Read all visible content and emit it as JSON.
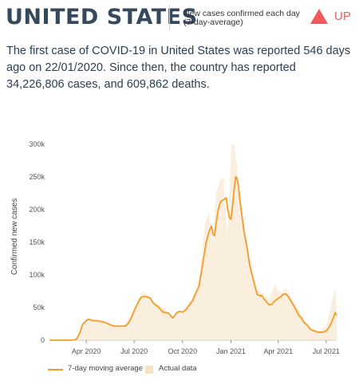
{
  "header": {
    "country": "UNITED STATES",
    "metric_line1": "New cases confirmed each day",
    "metric_line2": "(7-day-average)",
    "trend_label": "UP",
    "trend_icon": "triangle-up-icon",
    "trend_color": "#f05a5a"
  },
  "summary": "The first case of COVID-19 in United States was reported 546 days ago on 22/01/2020. Since then, the country has reported 34,226,806 cases, and 609,862 deaths.",
  "colors": {
    "line": "#f39c2a",
    "actual_fill": "#f6e1c4",
    "country_text": "#34495e"
  },
  "chart_data": {
    "type": "line",
    "title": "",
    "xlabel": "",
    "ylabel": "Confirmed new cases",
    "y_ticks": [
      {
        "value": 0,
        "label": "0"
      },
      {
        "value": 50000,
        "label": "50k"
      },
      {
        "value": 100000,
        "label": "100k"
      },
      {
        "value": 150000,
        "label": "150k"
      },
      {
        "value": 200000,
        "label": "200k"
      },
      {
        "value": 250000,
        "label": "250k"
      },
      {
        "value": 300000,
        "label": "300k"
      }
    ],
    "x_ticks": [
      {
        "date": "2020-04-01",
        "label": "Apr 2020"
      },
      {
        "date": "2020-07-01",
        "label": "Jul 2020"
      },
      {
        "date": "2020-10-01",
        "label": "Oct 2020"
      },
      {
        "date": "2021-01-01",
        "label": "Jan 2021"
      },
      {
        "date": "2021-04-01",
        "label": "Apr 2021"
      },
      {
        "date": "2021-07-01",
        "label": "Jul 2021"
      }
    ],
    "xlim": [
      "2020-01-22",
      "2021-07-21"
    ],
    "ylim": [
      0,
      300000
    ],
    "grid": false,
    "legend_position": "bottom",
    "series": [
      {
        "name": "7-day moving average",
        "kind": "line",
        "points": [
          [
            "2020-01-22",
            0
          ],
          [
            "2020-03-01",
            0
          ],
          [
            "2020-03-10",
            500
          ],
          [
            "2020-03-15",
            3000
          ],
          [
            "2020-03-20",
            12000
          ],
          [
            "2020-03-25",
            24000
          ],
          [
            "2020-04-01",
            30000
          ],
          [
            "2020-04-05",
            32000
          ],
          [
            "2020-04-10",
            31000
          ],
          [
            "2020-04-15",
            29500
          ],
          [
            "2020-04-20",
            30000
          ],
          [
            "2020-04-25",
            29000
          ],
          [
            "2020-05-01",
            28500
          ],
          [
            "2020-05-10",
            26000
          ],
          [
            "2020-05-15",
            24000
          ],
          [
            "2020-05-20",
            22500
          ],
          [
            "2020-05-25",
            21500
          ],
          [
            "2020-06-01",
            21500
          ],
          [
            "2020-06-10",
            21500
          ],
          [
            "2020-06-15",
            22000
          ],
          [
            "2020-06-20",
            26000
          ],
          [
            "2020-06-25",
            33000
          ],
          [
            "2020-07-01",
            45000
          ],
          [
            "2020-07-05",
            52000
          ],
          [
            "2020-07-10",
            60000
          ],
          [
            "2020-07-15",
            66000
          ],
          [
            "2020-07-20",
            67000
          ],
          [
            "2020-07-25",
            66500
          ],
          [
            "2020-08-01",
            64000
          ],
          [
            "2020-08-05",
            58000
          ],
          [
            "2020-08-10",
            54000
          ],
          [
            "2020-08-15",
            52000
          ],
          [
            "2020-08-20",
            47000
          ],
          [
            "2020-08-25",
            43000
          ],
          [
            "2020-09-01",
            42000
          ],
          [
            "2020-09-05",
            41000
          ],
          [
            "2020-09-10",
            36000
          ],
          [
            "2020-09-13",
            34000
          ],
          [
            "2020-09-16",
            38000
          ],
          [
            "2020-09-20",
            42000
          ],
          [
            "2020-09-25",
            44000
          ],
          [
            "2020-10-01",
            43000
          ],
          [
            "2020-10-05",
            45000
          ],
          [
            "2020-10-10",
            49000
          ],
          [
            "2020-10-15",
            55000
          ],
          [
            "2020-10-20",
            60000
          ],
          [
            "2020-10-25",
            70000
          ],
          [
            "2020-11-01",
            82000
          ],
          [
            "2020-11-05",
            100000
          ],
          [
            "2020-11-10",
            125000
          ],
          [
            "2020-11-15",
            150000
          ],
          [
            "2020-11-20",
            165000
          ],
          [
            "2020-11-25",
            175000
          ],
          [
            "2020-11-28",
            162000
          ],
          [
            "2020-12-01",
            160000
          ],
          [
            "2020-12-04",
            180000
          ],
          [
            "2020-12-08",
            200000
          ],
          [
            "2020-12-12",
            212000
          ],
          [
            "2020-12-16",
            214000
          ],
          [
            "2020-12-20",
            216000
          ],
          [
            "2020-12-23",
            218000
          ],
          [
            "2020-12-26",
            200000
          ],
          [
            "2020-12-29",
            188000
          ],
          [
            "2021-01-01",
            185000
          ],
          [
            "2021-01-04",
            205000
          ],
          [
            "2021-01-07",
            230000
          ],
          [
            "2021-01-10",
            250000
          ],
          [
            "2021-01-12",
            249000
          ],
          [
            "2021-01-15",
            238000
          ],
          [
            "2021-01-18",
            215000
          ],
          [
            "2021-01-22",
            190000
          ],
          [
            "2021-01-26",
            165000
          ],
          [
            "2021-02-01",
            140000
          ],
          [
            "2021-02-05",
            118000
          ],
          [
            "2021-02-10",
            100000
          ],
          [
            "2021-02-15",
            85000
          ],
          [
            "2021-02-20",
            70000
          ],
          [
            "2021-02-25",
            68000
          ],
          [
            "2021-03-01",
            68000
          ],
          [
            "2021-03-05",
            63000
          ],
          [
            "2021-03-10",
            58000
          ],
          [
            "2021-03-15",
            54000
          ],
          [
            "2021-03-20",
            55000
          ],
          [
            "2021-03-25",
            60000
          ],
          [
            "2021-04-01",
            64000
          ],
          [
            "2021-04-05",
            66000
          ],
          [
            "2021-04-10",
            70000
          ],
          [
            "2021-04-15",
            71000
          ],
          [
            "2021-04-20",
            67000
          ],
          [
            "2021-04-25",
            60000
          ],
          [
            "2021-05-01",
            52000
          ],
          [
            "2021-05-05",
            46000
          ],
          [
            "2021-05-10",
            38000
          ],
          [
            "2021-05-15",
            34000
          ],
          [
            "2021-05-20",
            27000
          ],
          [
            "2021-05-25",
            24000
          ],
          [
            "2021-06-01",
            17000
          ],
          [
            "2021-06-05",
            15000
          ],
          [
            "2021-06-10",
            14000
          ],
          [
            "2021-06-15",
            12500
          ],
          [
            "2021-06-20",
            12000
          ],
          [
            "2021-06-25",
            12500
          ],
          [
            "2021-07-01",
            14000
          ],
          [
            "2021-07-05",
            18000
          ],
          [
            "2021-07-10",
            25000
          ],
          [
            "2021-07-15",
            35000
          ],
          [
            "2021-07-18",
            42000
          ],
          [
            "2021-07-21",
            38000
          ]
        ]
      },
      {
        "name": "Actual data",
        "kind": "area",
        "points": [
          [
            "2020-01-22",
            0
          ],
          [
            "2020-03-01",
            0
          ],
          [
            "2020-03-15",
            4000
          ],
          [
            "2020-03-25",
            26000
          ],
          [
            "2020-04-04",
            35000
          ],
          [
            "2020-04-15",
            31000
          ],
          [
            "2020-05-01",
            30000
          ],
          [
            "2020-05-20",
            24000
          ],
          [
            "2020-06-10",
            23000
          ],
          [
            "2020-06-25",
            38000
          ],
          [
            "2020-07-10",
            65000
          ],
          [
            "2020-07-17",
            75000
          ],
          [
            "2020-07-25",
            70000
          ],
          [
            "2020-08-10",
            58000
          ],
          [
            "2020-09-01",
            45000
          ],
          [
            "2020-09-13",
            36000
          ],
          [
            "2020-10-01",
            46000
          ],
          [
            "2020-10-20",
            65000
          ],
          [
            "2020-11-01",
            90000
          ],
          [
            "2020-11-13",
            180000
          ],
          [
            "2020-11-20",
            195000
          ],
          [
            "2020-11-27",
            150000
          ],
          [
            "2020-12-04",
            225000
          ],
          [
            "2020-12-11",
            245000
          ],
          [
            "2020-12-18",
            250000
          ],
          [
            "2020-12-25",
            160000
          ],
          [
            "2021-01-02",
            300000
          ],
          [
            "2021-01-08",
            298000
          ],
          [
            "2021-01-15",
            245000
          ],
          [
            "2021-01-22",
            200000
          ],
          [
            "2021-02-01",
            150000
          ],
          [
            "2021-02-10",
            110000
          ],
          [
            "2021-02-20",
            78000
          ],
          [
            "2021-03-05",
            70000
          ],
          [
            "2021-03-15",
            62000
          ],
          [
            "2021-03-25",
            85000
          ],
          [
            "2021-04-05",
            72000
          ],
          [
            "2021-04-15",
            80000
          ],
          [
            "2021-05-01",
            58000
          ],
          [
            "2021-05-15",
            40000
          ],
          [
            "2021-06-01",
            18000
          ],
          [
            "2021-06-15",
            14000
          ],
          [
            "2021-07-01",
            20000
          ],
          [
            "2021-07-12",
            60000
          ],
          [
            "2021-07-19",
            80000
          ],
          [
            "2021-07-21",
            42000
          ]
        ]
      }
    ]
  },
  "legend": {
    "line_label": "7-day moving average",
    "area_label": "Actual data"
  }
}
